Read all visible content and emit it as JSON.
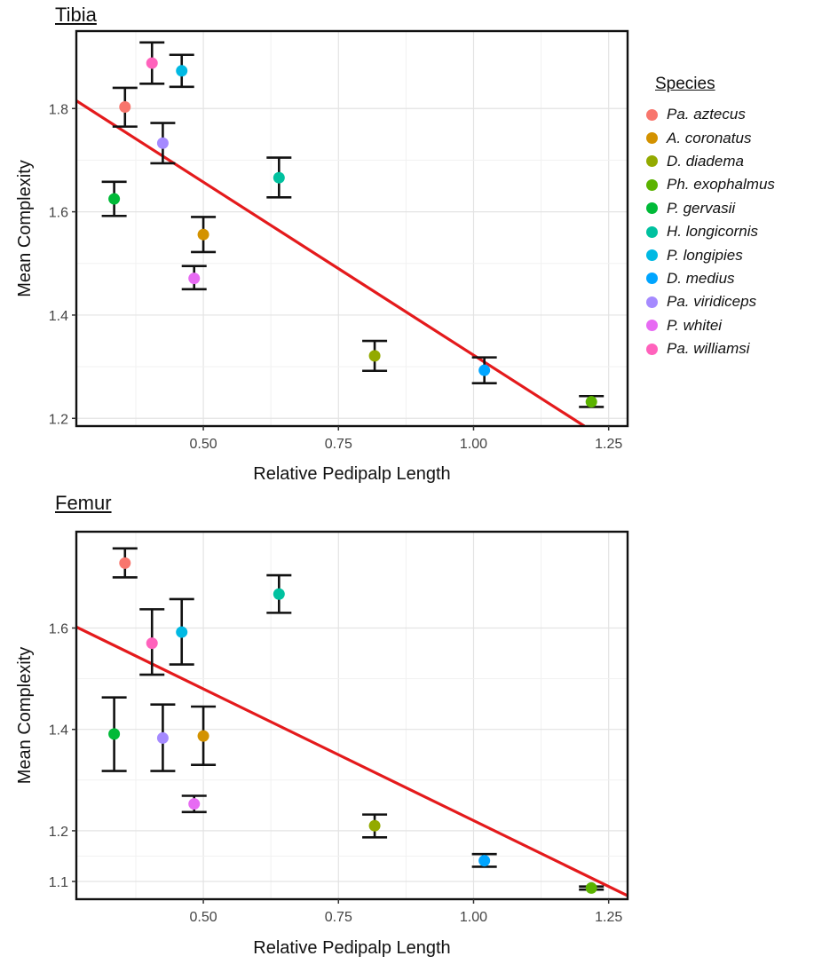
{
  "legend": {
    "title": "Species",
    "items": [
      {
        "label": "Pa. aztecus",
        "color": "#F8766D"
      },
      {
        "label": "A. coronatus",
        "color": "#D39200"
      },
      {
        "label": "D. diadema",
        "color": "#93AA00"
      },
      {
        "label": "Ph. exophalmus",
        "color": "#5BB300"
      },
      {
        "label": "P. gervasii",
        "color": "#00BA38"
      },
      {
        "label": "H. longicornis",
        "color": "#00C19F"
      },
      {
        "label": "P. longipies",
        "color": "#00B9E3"
      },
      {
        "label": "D. medius",
        "color": "#00A5FF"
      },
      {
        "label": "Pa. viridiceps",
        "color": "#A58AFF"
      },
      {
        "label": "P. whitei",
        "color": "#E76BF3"
      },
      {
        "label": "Pa. williamsi",
        "color": "#FF62BC"
      }
    ]
  },
  "chart_data": [
    {
      "type": "scatter",
      "title": "Tibia",
      "xlabel": "Relative Pedipalp Length",
      "ylabel": "Mean Complexity",
      "xlim": [
        0.265,
        1.285
      ],
      "ylim": [
        1.185,
        1.95
      ],
      "xticks": [
        0.5,
        0.75,
        1.0
      ],
      "xtick_labels": [
        "0.50",
        "0.75",
        "1.00"
      ],
      "xticks_extra": [
        {
          "value": 1.25,
          "label": "1.25"
        }
      ],
      "yticks": [
        1.2,
        1.4,
        1.6,
        1.8
      ],
      "ytick_labels": [
        "1.2",
        "1.4",
        "1.6",
        "1.8"
      ],
      "grid": true,
      "points": [
        {
          "species": "Pa. aztecus",
          "x": 0.355,
          "y": 1.803,
          "ylo": 1.765,
          "yhi": 1.84
        },
        {
          "species": "A. coronatus",
          "x": 0.5,
          "y": 1.556,
          "ylo": 1.522,
          "yhi": 1.59
        },
        {
          "species": "D. diadema",
          "x": 0.817,
          "y": 1.321,
          "ylo": 1.292,
          "yhi": 1.35
        },
        {
          "species": "Ph. exophalmus",
          "x": 1.218,
          "y": 1.232,
          "ylo": 1.222,
          "yhi": 1.243
        },
        {
          "species": "P. gervasii",
          "x": 0.335,
          "y": 1.625,
          "ylo": 1.592,
          "yhi": 1.658
        },
        {
          "species": "H. longicornis",
          "x": 0.64,
          "y": 1.666,
          "ylo": 1.628,
          "yhi": 1.705
        },
        {
          "species": "P. longipies",
          "x": 0.46,
          "y": 1.873,
          "ylo": 1.842,
          "yhi": 1.904
        },
        {
          "species": "D. medius",
          "x": 1.02,
          "y": 1.293,
          "ylo": 1.268,
          "yhi": 1.318
        },
        {
          "species": "Pa. viridiceps",
          "x": 0.425,
          "y": 1.733,
          "ylo": 1.694,
          "yhi": 1.772
        },
        {
          "species": "P. whitei",
          "x": 0.483,
          "y": 1.471,
          "ylo": 1.45,
          "yhi": 1.495
        },
        {
          "species": "Pa. williamsi",
          "x": 0.405,
          "y": 1.888,
          "ylo": 1.848,
          "yhi": 1.928
        }
      ],
      "fit_line": {
        "color": "#E41A1C",
        "x": [
          0.265,
          1.205
        ],
        "y": [
          1.815,
          1.185
        ]
      }
    },
    {
      "type": "scatter",
      "title": "Femur",
      "xlabel": "Relative Pedipalp Length",
      "ylabel": "Mean Complexity",
      "xlim": [
        0.265,
        1.285
      ],
      "ylim": [
        1.065,
        1.79
      ],
      "xticks": [
        0.5,
        0.75,
        1.0,
        1.25
      ],
      "xtick_labels": [
        "0.50",
        "0.75",
        "1.00",
        "1.25"
      ],
      "yticks": [
        1.1,
        1.2,
        1.4,
        1.6
      ],
      "ytick_labels": [
        "1.1",
        "1.2",
        "1.4",
        "1.6"
      ],
      "grid": true,
      "points": [
        {
          "species": "Pa. aztecus",
          "x": 0.355,
          "y": 1.728,
          "ylo": 1.7,
          "yhi": 1.757
        },
        {
          "species": "A. coronatus",
          "x": 0.5,
          "y": 1.387,
          "ylo": 1.33,
          "yhi": 1.445
        },
        {
          "species": "D. diadema",
          "x": 0.817,
          "y": 1.21,
          "ylo": 1.187,
          "yhi": 1.232
        },
        {
          "species": "Ph. exophalmus",
          "x": 1.218,
          "y": 1.087,
          "ylo": 1.084,
          "yhi": 1.09
        },
        {
          "species": "P. gervasii",
          "x": 0.335,
          "y": 1.391,
          "ylo": 1.318,
          "yhi": 1.463
        },
        {
          "species": "H. longicornis",
          "x": 0.64,
          "y": 1.667,
          "ylo": 1.63,
          "yhi": 1.704
        },
        {
          "species": "P. longipies",
          "x": 0.46,
          "y": 1.592,
          "ylo": 1.528,
          "yhi": 1.657
        },
        {
          "species": "D. medius",
          "x": 1.02,
          "y": 1.141,
          "ylo": 1.129,
          "yhi": 1.154
        },
        {
          "species": "Pa. viridiceps",
          "x": 0.425,
          "y": 1.383,
          "ylo": 1.318,
          "yhi": 1.449
        },
        {
          "species": "P. whitei",
          "x": 0.483,
          "y": 1.253,
          "ylo": 1.237,
          "yhi": 1.269
        },
        {
          "species": "Pa. williamsi",
          "x": 0.405,
          "y": 1.57,
          "ylo": 1.508,
          "yhi": 1.637
        }
      ],
      "fit_line": {
        "color": "#E41A1C",
        "x": [
          0.265,
          1.285
        ],
        "y": [
          1.602,
          1.072
        ]
      }
    }
  ]
}
